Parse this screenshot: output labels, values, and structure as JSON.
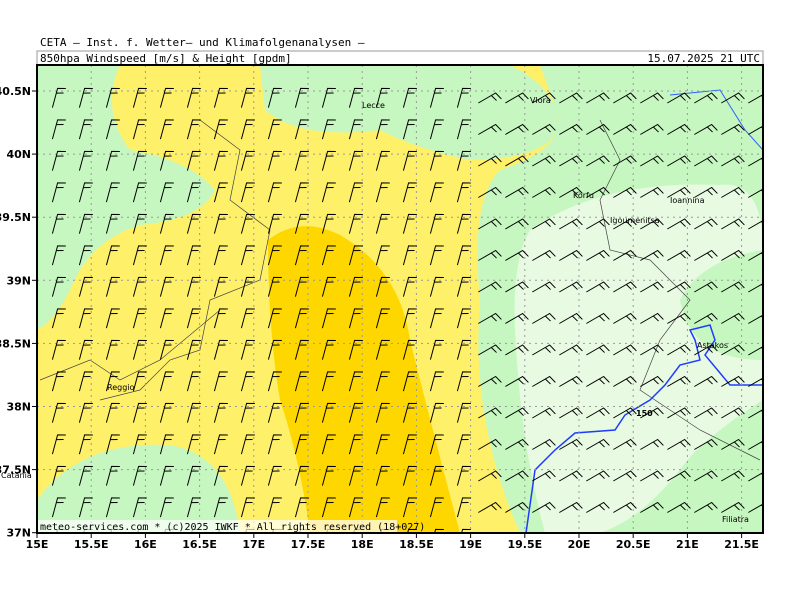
{
  "header": {
    "line1": "CETA — Inst. f. Wetter— und Klimafolgenanalysen —",
    "left": "850hpa Windspeed [m/s] & Height [gpdm]",
    "right": "15.07.2025 21 UTC"
  },
  "axes": {
    "lon_ticks": [
      "15E",
      "15.5E",
      "16E",
      "16.5E",
      "17E",
      "17.5E",
      "18E",
      "18.5E",
      "19E",
      "19.5E",
      "20E",
      "20.5E",
      "21E",
      "21.5E"
    ],
    "lat_ticks": [
      "40.5N",
      "40N",
      "39.5N",
      "39N",
      "38.5N",
      "38N",
      "37.5N",
      "37N"
    ]
  },
  "places": [
    "Vlora",
    "Lecce",
    "Korfu",
    "Igoumenitsa",
    "Ioannina",
    "Astakos",
    "Reggio",
    "Catania",
    "Filiatra"
  ],
  "contour_label": "150",
  "footer": "meteo-services.com * (c)2025 IWKF * All rights reserved (18+027)"
}
